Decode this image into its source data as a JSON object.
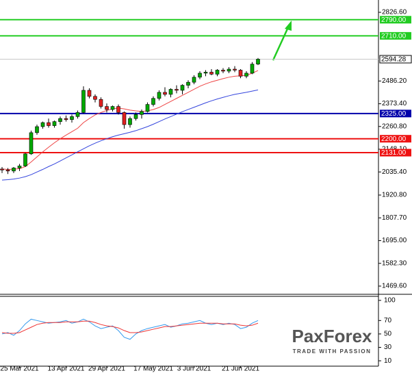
{
  "chart_data": {
    "type": "candlestick",
    "categories": [
      null,
      null,
      null,
      "25 Mar 2021",
      null,
      null,
      null,
      null,
      null,
      null,
      null,
      "13 Apr 2021",
      null,
      null,
      null,
      null,
      null,
      null,
      "29 Apr 2021",
      null,
      null,
      null,
      null,
      null,
      null,
      null,
      "17 May 2021",
      null,
      null,
      null,
      null,
      null,
      null,
      "3 Jun 2021",
      null,
      null,
      null,
      null,
      null,
      null,
      null,
      "21 Jun 2021",
      null,
      null,
      null
    ],
    "open": [
      2050,
      2045,
      2040,
      2055,
      2065,
      2125,
      2230,
      2260,
      2280,
      2265,
      2285,
      2300,
      2295,
      2310,
      2330,
      2440,
      2410,
      2395,
      2360,
      2345,
      2360,
      2330,
      2270,
      2300,
      2320,
      2335,
      2370,
      2400,
      2430,
      2420,
      2445,
      2440,
      2465,
      2480,
      2505,
      2525,
      2530,
      2520,
      2540,
      2535,
      2545,
      2540,
      2510,
      2525,
      2570
    ],
    "high": [
      2060,
      2055,
      2060,
      2075,
      2130,
      2240,
      2270,
      2285,
      2300,
      2290,
      2310,
      2315,
      2320,
      2340,
      2460,
      2450,
      2420,
      2405,
      2375,
      2365,
      2370,
      2335,
      2310,
      2330,
      2345,
      2380,
      2410,
      2440,
      2455,
      2450,
      2465,
      2470,
      2490,
      2515,
      2535,
      2540,
      2545,
      2545,
      2550,
      2555,
      2560,
      2545,
      2535,
      2580,
      2600
    ],
    "low": [
      2030,
      2025,
      2030,
      2040,
      2060,
      2120,
      2220,
      2250,
      2255,
      2255,
      2270,
      2285,
      2280,
      2300,
      2325,
      2400,
      2380,
      2350,
      2330,
      2335,
      2320,
      2250,
      2255,
      2290,
      2300,
      2330,
      2360,
      2390,
      2410,
      2405,
      2425,
      2420,
      2450,
      2470,
      2495,
      2510,
      2515,
      2510,
      2525,
      2525,
      2530,
      2500,
      2500,
      2520,
      2565
    ],
    "close": [
      2045,
      2040,
      2055,
      2065,
      2125,
      2230,
      2260,
      2280,
      2265,
      2285,
      2300,
      2295,
      2310,
      2330,
      2440,
      2410,
      2395,
      2360,
      2345,
      2360,
      2330,
      2270,
      2300,
      2320,
      2335,
      2370,
      2400,
      2430,
      2420,
      2445,
      2440,
      2465,
      2480,
      2505,
      2525,
      2530,
      2520,
      2540,
      2535,
      2545,
      2540,
      2510,
      2525,
      2570,
      2594.28
    ],
    "up_color": "#00a800",
    "down_color": "#e02020",
    "moving_averages": [
      {
        "color": "#ee4444",
        "values": [
          2050,
          2048,
          2049,
          2052,
          2062,
          2085,
          2110,
          2135,
          2158,
          2180,
          2200,
          2218,
          2235,
          2252,
          2280,
          2300,
          2318,
          2330,
          2340,
          2348,
          2352,
          2348,
          2342,
          2338,
          2335,
          2338,
          2345,
          2355,
          2370,
          2385,
          2400,
          2415,
          2430,
          2445,
          2460,
          2472,
          2482,
          2490,
          2498,
          2505,
          2510,
          2512,
          2514,
          2525,
          2538
        ]
      },
      {
        "color": "#3344dd",
        "values": [
          1995,
          1997,
          2000,
          2005,
          2012,
          2022,
          2035,
          2048,
          2062,
          2075,
          2090,
          2105,
          2120,
          2135,
          2150,
          2165,
          2178,
          2190,
          2200,
          2210,
          2218,
          2225,
          2232,
          2240,
          2250,
          2260,
          2272,
          2285,
          2298,
          2310,
          2322,
          2334,
          2345,
          2356,
          2367,
          2378,
          2388,
          2397,
          2405,
          2413,
          2420,
          2425,
          2430,
          2436,
          2442
        ]
      }
    ],
    "ylim": [
      1428.9,
      2887.7
    ],
    "yticks": [
      {
        "value": 2826.6,
        "label": "2826.60"
      },
      {
        "value": 2486.2,
        "label": "2486.20"
      },
      {
        "value": 2373.4,
        "label": "2373.40"
      },
      {
        "value": 2260.8,
        "label": "2260.80"
      },
      {
        "value": 2148.1,
        "label": "2148.10"
      },
      {
        "value": 2035.4,
        "label": "2035.40"
      },
      {
        "value": 1920.8,
        "label": "1920.80"
      },
      {
        "value": 1807.7,
        "label": "1807.70"
      },
      {
        "value": 1695,
        "label": "1695.00"
      },
      {
        "value": 1582.3,
        "label": "1582.30"
      },
      {
        "value": 1469.6,
        "label": "1469.60"
      }
    ],
    "levels": [
      {
        "value": 2790,
        "label": "2790.00",
        "color": "#22cc22"
      },
      {
        "value": 2710,
        "label": "2710.00",
        "color": "#22cc22"
      },
      {
        "value": 2325,
        "label": "2325.00",
        "color": "#0000aa"
      },
      {
        "value": 2200,
        "label": "2200.00",
        "color": "#ee1111"
      },
      {
        "value": 2131,
        "label": "2131.00",
        "color": "#ee1111"
      }
    ],
    "last_price": {
      "value": 2594.28,
      "label": "2594.28"
    },
    "oscillator": {
      "ylim": [
        2,
        106
      ],
      "yticks": [
        100,
        70,
        50,
        30,
        10
      ],
      "series": [
        {
          "color": "#3399ee",
          "values": [
            50,
            52,
            48,
            55,
            65,
            72,
            70,
            68,
            66,
            67,
            68,
            70,
            66,
            68,
            72,
            68,
            62,
            58,
            60,
            62,
            55,
            45,
            42,
            50,
            55,
            58,
            60,
            62,
            64,
            60,
            62,
            65,
            66,
            68,
            70,
            66,
            64,
            66,
            64,
            66,
            64,
            58,
            60,
            66,
            70
          ]
        },
        {
          "color": "#ee3333",
          "values": [
            52,
            51,
            51,
            52,
            56,
            60,
            64,
            66,
            67,
            67,
            67,
            68,
            68,
            68,
            69,
            69,
            67,
            64,
            62,
            61,
            59,
            55,
            52,
            52,
            53,
            55,
            57,
            59,
            61,
            61,
            62,
            63,
            64,
            65,
            66,
            66,
            66,
            66,
            65,
            65,
            65,
            63,
            62,
            63,
            66
          ]
        }
      ]
    },
    "watermark": {
      "brand": "PaxForex",
      "tagline": "TRADE WITH PASSION"
    }
  }
}
